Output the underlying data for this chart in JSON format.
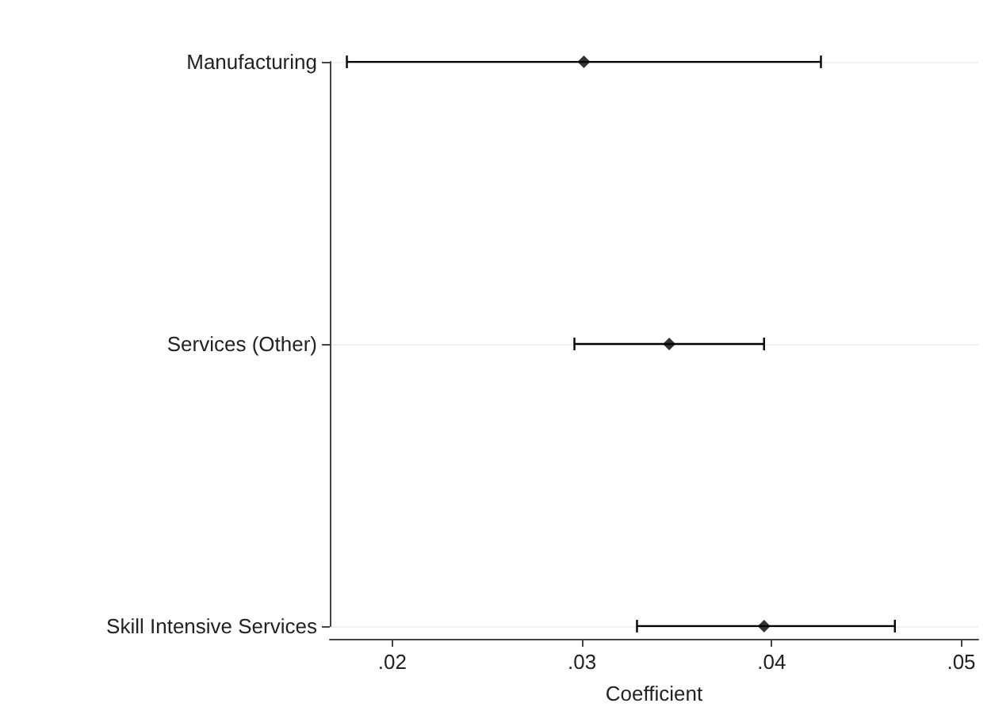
{
  "chart_data": {
    "type": "scatter",
    "orientation": "horizontal",
    "xlabel": "Coefficient",
    "categories": [
      "Manufacturing",
      "Services (Other)",
      "Skill Intensive Services"
    ],
    "values": [
      0.0301,
      0.0346,
      0.0396
    ],
    "errors": [
      [
        0.0176,
        0.0426
      ],
      [
        0.0296,
        0.0396
      ],
      [
        0.0329,
        0.0465
      ]
    ],
    "color": "#000000",
    "marker": "diamond",
    "grid": "y",
    "xlim": [
      0.0167,
      0.0509
    ],
    "xticks": [
      {
        "value": 0.02,
        "label": ".02"
      },
      {
        "value": 0.03,
        "label": ".03"
      },
      {
        "value": 0.04,
        "label": ".04"
      },
      {
        "value": 0.05,
        "label": ".05"
      }
    ]
  }
}
